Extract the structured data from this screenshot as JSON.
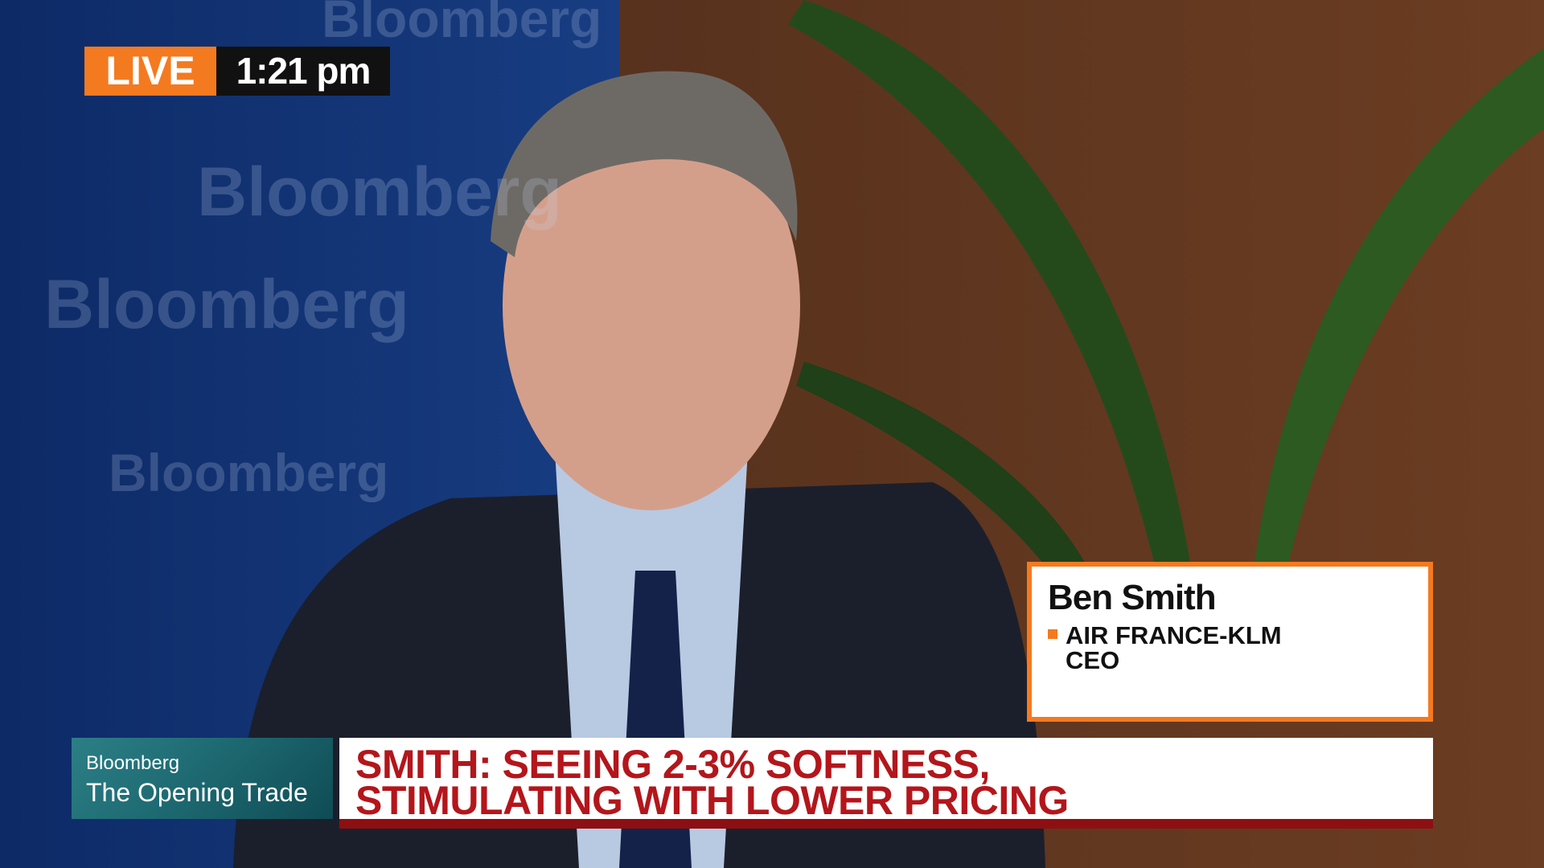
{
  "backdrop": {
    "logo": "Bloomberg"
  },
  "live_bug": {
    "label": "LIVE",
    "time": "1:21 pm"
  },
  "lower_third": {
    "name": "Ben Smith",
    "title_lines": [
      "AIR FRANCE-KLM",
      "CEO"
    ]
  },
  "show_bug": {
    "brand": "Bloomberg",
    "show": "The Opening Trade"
  },
  "headline": {
    "lines": [
      "SMITH: SEEING 2-3% SOFTNESS,",
      "STIMULATING WITH LOWER PRICING"
    ]
  }
}
